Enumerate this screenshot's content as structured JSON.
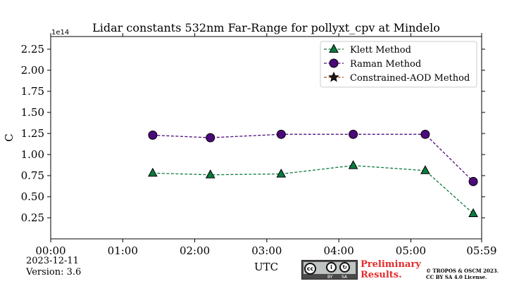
{
  "chart_data": {
    "type": "line",
    "title": "Lidar constants 532nm Far-Range for pollyxt_cpv at Mindelo",
    "xlabel": "UTC",
    "ylabel": "C",
    "y_multiplier_label": "1e14",
    "xlim": [
      0,
      359
    ],
    "ylim": [
      0,
      2.4
    ],
    "x_ticks": [
      {
        "value": 0,
        "label": "00:00"
      },
      {
        "value": 60,
        "label": "01:00"
      },
      {
        "value": 120,
        "label": "02:00"
      },
      {
        "value": 180,
        "label": "03:00"
      },
      {
        "value": 240,
        "label": "04:00"
      },
      {
        "value": 300,
        "label": "05:00"
      },
      {
        "value": 359,
        "label": "05:59"
      }
    ],
    "y_ticks": [
      {
        "value": 0.25,
        "label": "0.25"
      },
      {
        "value": 0.5,
        "label": "0.50"
      },
      {
        "value": 0.75,
        "label": "0.75"
      },
      {
        "value": 1.0,
        "label": "1.00"
      },
      {
        "value": 1.25,
        "label": "1.25"
      },
      {
        "value": 1.5,
        "label": "1.50"
      },
      {
        "value": 1.75,
        "label": "1.75"
      },
      {
        "value": 2.0,
        "label": "2.00"
      },
      {
        "value": 2.25,
        "label": "2.25"
      }
    ],
    "legend_position": "top-right",
    "grid": false,
    "series": [
      {
        "name": "Klett Method",
        "marker": "triangle",
        "color": "#0b7a3e",
        "x": [
          85,
          133,
          192,
          252,
          312,
          352
        ],
        "values": [
          0.78,
          0.76,
          0.77,
          0.87,
          0.81,
          0.3
        ]
      },
      {
        "name": "Raman Method",
        "marker": "circle",
        "color": "#4b0a7a",
        "x": [
          85,
          133,
          192,
          252,
          312,
          352
        ],
        "values": [
          1.23,
          1.2,
          1.24,
          1.24,
          1.24,
          0.68
        ]
      },
      {
        "name": "Constrained-AOD Method",
        "marker": "star",
        "color": "#b5521b",
        "x": [],
        "values": []
      }
    ]
  },
  "info": {
    "date": "2023-12-11",
    "version": "Version: 3.6"
  },
  "footer": {
    "preliminary_line1": "Preliminary",
    "preliminary_line2": "Results.",
    "copyright_line1": "© TROPOS & OSCM 2023.",
    "copyright_line2": "CC BY SA 4.0 License.",
    "cc_by": "BY",
    "cc_sa": "SA"
  }
}
